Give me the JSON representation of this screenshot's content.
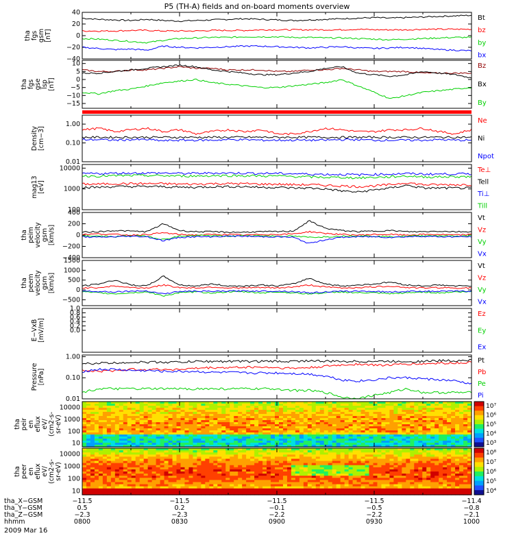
{
  "title": "P5 (TH-A) fields and on-board moments overview",
  "date": "2009 Mar 16",
  "chart_data": [
    {
      "type": "line",
      "ylabel": [
        "tha",
        "fgs",
        "gsm",
        "[nT]"
      ],
      "ylim": [
        -40,
        40
      ],
      "yticks": [
        "40",
        "20",
        "0",
        "−20",
        "−40"
      ],
      "series": [
        {
          "name": "Bt",
          "color": "#000000",
          "values": [
            30,
            28,
            27,
            26,
            28,
            26,
            25,
            26,
            27,
            28,
            29,
            28,
            27,
            26,
            27,
            28,
            29,
            30,
            31,
            30,
            31,
            32,
            33,
            34,
            35
          ]
        },
        {
          "name": "bz",
          "color": "#ff0000",
          "values": [
            8,
            8,
            8,
            9,
            9,
            8,
            8,
            8,
            9,
            9,
            9,
            10,
            10,
            10,
            10,
            10,
            10,
            11,
            10,
            10,
            10,
            11,
            11,
            11,
            11
          ]
        },
        {
          "name": "by",
          "color": "#00d000",
          "values": [
            -5,
            -6,
            -8,
            -10,
            -12,
            -8,
            -5,
            -4,
            -3,
            -3,
            -2,
            -2,
            -2,
            -3,
            -3,
            -4,
            -4,
            -5,
            -6,
            -7,
            -6,
            -5,
            -4,
            -3,
            -3
          ]
        },
        {
          "name": "bx",
          "color": "#0000ff",
          "values": [
            -20,
            -22,
            -24,
            -23,
            -25,
            -18,
            -20,
            -21,
            -20,
            -19,
            -18,
            -18,
            -19,
            -20,
            -21,
            -20,
            -19,
            -21,
            -22,
            -21,
            -20,
            -22,
            -24,
            -25,
            -26
          ]
        }
      ]
    },
    {
      "type": "line",
      "ylabel": [
        "tha",
        "fgs",
        "gse",
        "lsp",
        "[nT]"
      ],
      "ylim": [
        -18,
        12
      ],
      "yticks": [
        "10",
        "5",
        "0",
        "−5",
        "−10",
        "−15"
      ],
      "series": [
        {
          "name": "Bz",
          "color": "#900000",
          "values": [
            6,
            5,
            5,
            6,
            6,
            7,
            8,
            7,
            7,
            6,
            6,
            6,
            5,
            5,
            6,
            6,
            7,
            6,
            5,
            5,
            5,
            4,
            4,
            4,
            4
          ]
        },
        {
          "name": "Bx",
          "color": "#000000",
          "values": [
            4,
            4,
            5,
            6,
            7,
            8,
            9,
            8,
            6,
            5,
            4,
            3,
            3,
            4,
            5,
            7,
            8,
            4,
            3,
            2,
            3,
            5,
            4,
            3,
            1
          ]
        },
        {
          "name": "By",
          "color": "#00d000",
          "values": [
            -8,
            -9,
            -7,
            -6,
            -4,
            -2,
            -1,
            0,
            -2,
            -3,
            -4,
            -5,
            -5,
            -4,
            -3,
            -2,
            0,
            -4,
            -8,
            -12,
            -10,
            -8,
            -7,
            -6,
            -5
          ]
        }
      ]
    },
    {
      "type": "line",
      "ylabel": [
        "Density",
        "[cm−3]"
      ],
      "log": true,
      "ylim": [
        0.01,
        3
      ],
      "yticks": [
        "1.00",
        "0.10",
        "0.01"
      ],
      "series": [
        {
          "name": "Ne",
          "color": "#ff0000",
          "values": [
            0.5,
            0.6,
            0.4,
            0.5,
            0.6,
            0.4,
            0.5,
            0.3,
            0.4,
            0.5,
            0.4,
            0.5,
            0.3,
            0.3,
            0.4,
            0.6,
            0.5,
            0.4,
            0.4,
            0.5,
            0.5,
            0.6,
            0.4,
            0.3,
            0.5
          ]
        },
        {
          "name": "Ni",
          "color": "#000000",
          "values": [
            0.2,
            0.2,
            0.2,
            0.2,
            0.2,
            0.2,
            0.2,
            0.2,
            0.2,
            0.2,
            0.2,
            0.2,
            0.2,
            0.2,
            0.2,
            0.2,
            0.2,
            0.2,
            0.2,
            0.2,
            0.2,
            0.2,
            0.2,
            0.2,
            0.2
          ]
        },
        {
          "name": "Npot",
          "color": "#0000ff",
          "values": [
            0.15,
            0.15,
            0.14,
            0.15,
            0.15,
            0.13,
            0.14,
            0.14,
            0.14,
            0.15,
            0.15,
            0.14,
            0.14,
            0.14,
            0.14,
            0.14,
            0.15,
            0.15,
            0.14,
            0.14,
            0.14,
            0.14,
            0.15,
            0.14,
            0.14
          ]
        }
      ]
    },
    {
      "type": "line",
      "ylabel": [
        "mag13",
        "[eV]"
      ],
      "log": true,
      "ylim": [
        100,
        15000
      ],
      "yticks": [
        "10000",
        "1000",
        "100"
      ],
      "series": [
        {
          "name": "Te⊥",
          "color": "#ff0000",
          "values": [
            1700,
            1700,
            1800,
            1800,
            1800,
            1800,
            1700,
            1700,
            1800,
            1800,
            1800,
            1700,
            1700,
            1600,
            1600,
            1500,
            1400,
            1300,
            1400,
            1600,
            2000,
            1600,
            1600,
            1600,
            1600
          ]
        },
        {
          "name": "Tell",
          "color": "#000000",
          "values": [
            1200,
            1200,
            1300,
            1300,
            1300,
            1300,
            1200,
            1200,
            1300,
            1300,
            1300,
            1200,
            1200,
            1100,
            1100,
            1000,
            800,
            700,
            900,
            1100,
            1500,
            1100,
            1100,
            1100,
            1100
          ]
        },
        {
          "name": "Ti⊥",
          "color": "#0000ff",
          "values": [
            5500,
            5500,
            5700,
            5800,
            5800,
            5800,
            5600,
            5600,
            5800,
            5800,
            5800,
            5600,
            5600,
            5400,
            5200,
            5000,
            5000,
            4800,
            5000,
            5200,
            5500,
            5200,
            5200,
            5300,
            5300
          ]
        },
        {
          "name": "Till",
          "color": "#00d000",
          "values": [
            4200,
            4200,
            4300,
            4400,
            4400,
            4300,
            4200,
            4200,
            4300,
            4400,
            4300,
            4200,
            4200,
            4000,
            3800,
            3600,
            3600,
            3400,
            3600,
            3800,
            4200,
            3800,
            3800,
            3900,
            3900
          ]
        }
      ]
    },
    {
      "type": "line",
      "ylabel": [
        "tha",
        "peim",
        "velocity",
        "gsm",
        "[km/s]"
      ],
      "ylim": [
        -400,
        400
      ],
      "yticks": [
        "400",
        "200",
        "0",
        "−200",
        "−400"
      ],
      "series": [
        {
          "name": "Vt",
          "color": "#000000",
          "values": [
            50,
            60,
            80,
            70,
            60,
            200,
            80,
            60,
            60,
            50,
            50,
            60,
            60,
            70,
            250,
            120,
            80,
            60,
            70,
            80,
            60,
            60,
            70,
            60,
            60
          ]
        },
        {
          "name": "Vz",
          "color": "#ff0000",
          "values": [
            10,
            20,
            10,
            0,
            10,
            40,
            10,
            0,
            10,
            10,
            0,
            10,
            10,
            20,
            60,
            30,
            10,
            0,
            10,
            10,
            0,
            10,
            10,
            0,
            10
          ]
        },
        {
          "name": "Vy",
          "color": "#00d000",
          "values": [
            -10,
            -20,
            -30,
            -10,
            -20,
            -80,
            -20,
            -10,
            -10,
            -20,
            -10,
            -10,
            -20,
            -20,
            -40,
            -30,
            -20,
            -10,
            -20,
            -30,
            -20,
            -10,
            -10,
            -20,
            -10
          ]
        },
        {
          "name": "Vx",
          "color": "#0000ff",
          "values": [
            -30,
            -40,
            -30,
            -20,
            -30,
            -100,
            -40,
            -30,
            -30,
            -20,
            -20,
            -30,
            -30,
            -40,
            -150,
            -80,
            -40,
            -30,
            -30,
            -40,
            -30,
            -20,
            -30,
            -30,
            -30
          ]
        }
      ]
    },
    {
      "type": "line",
      "ylabel": [
        "tha",
        "peem",
        "velocity",
        "gsm",
        "[km/s]"
      ],
      "ylim": [
        -800,
        1500
      ],
      "yticks": [
        "1500",
        "1000",
        "500",
        "0",
        "−500"
      ],
      "series": [
        {
          "name": "Vt",
          "color": "#000000",
          "values": [
            200,
            300,
            500,
            250,
            200,
            700,
            250,
            200,
            300,
            200,
            200,
            250,
            200,
            300,
            600,
            300,
            200,
            250,
            300,
            400,
            250,
            200,
            250,
            200,
            200
          ]
        },
        {
          "name": "Vz",
          "color": "#ff0000",
          "values": [
            100,
            120,
            200,
            120,
            100,
            250,
            120,
            100,
            150,
            100,
            100,
            120,
            100,
            150,
            250,
            150,
            100,
            120,
            150,
            200,
            120,
            100,
            120,
            100,
            100
          ]
        },
        {
          "name": "Vy",
          "color": "#00d000",
          "values": [
            -100,
            -150,
            -200,
            -150,
            -100,
            -300,
            -150,
            -100,
            -150,
            -100,
            -100,
            -150,
            -100,
            -150,
            -200,
            -150,
            -100,
            -150,
            -150,
            -200,
            -150,
            -100,
            -150,
            -100,
            -100
          ]
        },
        {
          "name": "Vx",
          "color": "#0000ff",
          "values": [
            -50,
            -80,
            -100,
            -60,
            -50,
            -200,
            -80,
            -60,
            -80,
            -60,
            -50,
            -60,
            -60,
            -80,
            -150,
            -100,
            -80,
            -60,
            -80,
            -100,
            -80,
            -60,
            -80,
            -60,
            -60
          ]
        }
      ]
    },
    {
      "type": "line",
      "ylabel": [
        "E−VxB",
        "[mV/m]"
      ],
      "ylim": [
        -1,
        1
      ],
      "yticks": [
        "1.0",
        "0.8",
        "0.6",
        "0.4",
        "0.2",
        "0.0"
      ],
      "series": [
        {
          "name": "Ez",
          "color": "#ff0000",
          "values": []
        },
        {
          "name": "Ey",
          "color": "#00d000",
          "values": []
        },
        {
          "name": "Ex",
          "color": "#0000ff",
          "values": []
        }
      ]
    },
    {
      "type": "line",
      "ylabel": [
        "Pressure",
        "[nPa]"
      ],
      "log": true,
      "ylim": [
        0.01,
        1.2
      ],
      "yticks": [
        "1.00",
        "0.10",
        "0.01"
      ],
      "series": [
        {
          "name": "Pt",
          "color": "#000000",
          "values": [
            0.45,
            0.5,
            0.5,
            0.55,
            0.55,
            0.55,
            0.55,
            0.6,
            0.6,
            0.6,
            0.6,
            0.6,
            0.6,
            0.6,
            0.65,
            0.6,
            0.6,
            0.6,
            0.6,
            0.6,
            0.6,
            0.6,
            0.65,
            0.65,
            0.7
          ]
        },
        {
          "name": "Pb",
          "color": "#ff0000",
          "values": [
            0.22,
            0.2,
            0.22,
            0.25,
            0.25,
            0.25,
            0.25,
            0.28,
            0.3,
            0.3,
            0.32,
            0.32,
            0.3,
            0.28,
            0.3,
            0.35,
            0.4,
            0.45,
            0.4,
            0.4,
            0.45,
            0.45,
            0.5,
            0.5,
            0.55
          ]
        },
        {
          "name": "Pe",
          "color": "#00d000",
          "values": [
            0.02,
            0.03,
            0.03,
            0.03,
            0.03,
            0.03,
            0.03,
            0.03,
            0.03,
            0.03,
            0.03,
            0.03,
            0.03,
            0.025,
            0.025,
            0.02,
            0.012,
            0.01,
            0.015,
            0.02,
            0.03,
            0.02,
            0.02,
            0.02,
            0.02
          ]
        },
        {
          "name": "Pi",
          "color": "#0000ff",
          "values": [
            0.2,
            0.25,
            0.25,
            0.22,
            0.22,
            0.2,
            0.2,
            0.2,
            0.18,
            0.18,
            0.17,
            0.17,
            0.17,
            0.16,
            0.15,
            0.12,
            0.08,
            0.07,
            0.08,
            0.1,
            0.1,
            0.09,
            0.08,
            0.07,
            0.05
          ]
        }
      ]
    },
    {
      "type": "heatmap",
      "ylabel": [
        "tha",
        "peir",
        "en",
        "eflux",
        "eV/",
        "(cm2-s-",
        "sr-eV)"
      ],
      "ylim": [
        5,
        30000
      ],
      "yticks": [
        "10000",
        "1000",
        "100",
        "10"
      ],
      "colorbar_ticks": [
        "10⁷",
        "10⁶",
        "10⁵",
        "10⁴",
        "10³"
      ]
    },
    {
      "type": "heatmap",
      "ylabel": [
        "tha",
        "peer",
        "en",
        "eflux",
        "eV/",
        "(cm2-s-",
        "sr-eV)"
      ],
      "ylim": [
        5,
        30000
      ],
      "yticks": [
        "10000",
        "1000",
        "100",
        "10"
      ],
      "colorbar_ticks": [
        "10⁸",
        "10⁷",
        "10⁶",
        "10⁵",
        "10⁴"
      ]
    }
  ],
  "xaxis": {
    "rows": [
      {
        "label": "tha_X−GSM",
        "values": [
          "−11.5",
          "−11.5",
          "−11.5",
          "−11.5",
          "−11.4"
        ]
      },
      {
        "label": "tha_Y−GSM",
        "values": [
          "0.5",
          "0.2",
          "−0.1",
          "−0.5",
          "−0.8"
        ]
      },
      {
        "label": "tha_Z−GSM",
        "values": [
          "−2.3",
          "−2.3",
          "−2.2",
          "−2.2",
          "−2.1"
        ]
      },
      {
        "label": "hhmm",
        "values": [
          "0800",
          "0830",
          "0900",
          "0930",
          "1000"
        ]
      }
    ]
  }
}
